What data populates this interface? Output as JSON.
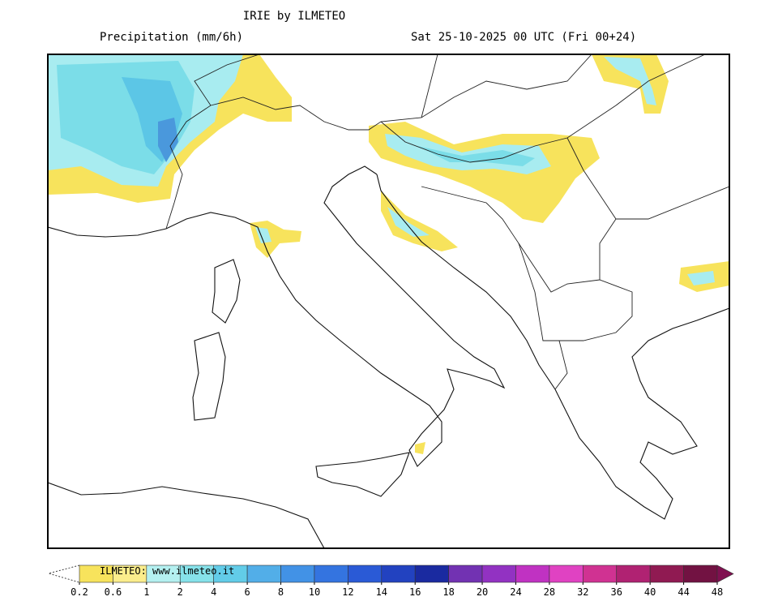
{
  "header": {
    "title": "IRIE by ILMETEO",
    "variable": "Precipitation (mm/6h)",
    "valid_time": "Sat 25-10-2025 00 UTC (Fri 00+24)"
  },
  "colorbar": {
    "credit": "ILMETEO: www.ilmeteo.it",
    "levels": [
      0.2,
      0.6,
      1,
      2,
      4,
      6,
      8,
      10,
      12,
      14,
      16,
      18,
      20,
      24,
      28,
      32,
      36,
      40,
      44,
      48
    ],
    "colors": [
      "#f7e35c",
      "#fbed8c",
      "#b4f0f0",
      "#86e2ea",
      "#62cce8",
      "#52aee8",
      "#4292e6",
      "#3474e0",
      "#2a5ad6",
      "#2242c0",
      "#1a2aa0",
      "#7232b2",
      "#9232c2",
      "#c032c2",
      "#e042c2",
      "#d03292",
      "#b02272",
      "#901a52",
      "#721242",
      "#801050"
    ]
  }
}
